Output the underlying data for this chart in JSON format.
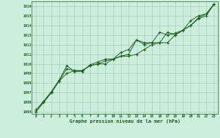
{
  "xlabel": "Graphe pression niveau de la mer (hPa)",
  "x_values": [
    0,
    1,
    2,
    3,
    4,
    5,
    6,
    7,
    8,
    9,
    10,
    11,
    12,
    13,
    14,
    15,
    16,
    17,
    18,
    19,
    20,
    21,
    22,
    23
  ],
  "series1": [
    1005.0,
    1006.0,
    1007.0,
    1008.2,
    1009.5,
    1009.3,
    1009.3,
    1009.8,
    1010.0,
    1010.3,
    1010.5,
    1011.2,
    1011.5,
    1012.5,
    1012.2,
    1012.2,
    1013.3,
    1013.0,
    1013.2,
    1013.5,
    1014.5,
    1015.0,
    1015.2,
    1016.2
  ],
  "series2": [
    1005.2,
    1006.1,
    1007.1,
    1008.3,
    1009.8,
    1009.2,
    1009.2,
    1009.9,
    1010.2,
    1010.5,
    1010.5,
    1010.8,
    1011.0,
    1012.5,
    1012.0,
    1012.2,
    1012.2,
    1013.3,
    1013.0,
    1013.5,
    1014.0,
    1014.8,
    1015.2,
    1016.2
  ],
  "series3": [
    1005.0,
    1006.0,
    1007.0,
    1008.2,
    1009.0,
    1009.3,
    1009.3,
    1009.8,
    1010.0,
    1010.0,
    1010.5,
    1010.8,
    1010.8,
    1011.0,
    1011.5,
    1012.0,
    1012.2,
    1012.2,
    1013.0,
    1013.5,
    1014.0,
    1014.7,
    1015.0,
    1016.2
  ],
  "ylim_min": 1004.8,
  "ylim_max": 1016.5,
  "yticks": [
    1005,
    1006,
    1007,
    1008,
    1009,
    1010,
    1011,
    1012,
    1013,
    1014,
    1015,
    1016
  ],
  "line_color": "#1a5c1a",
  "bg_color": "#cceedd",
  "grid_color": "#aaccbb",
  "label_color": "#1a5c1a",
  "marker": "+"
}
